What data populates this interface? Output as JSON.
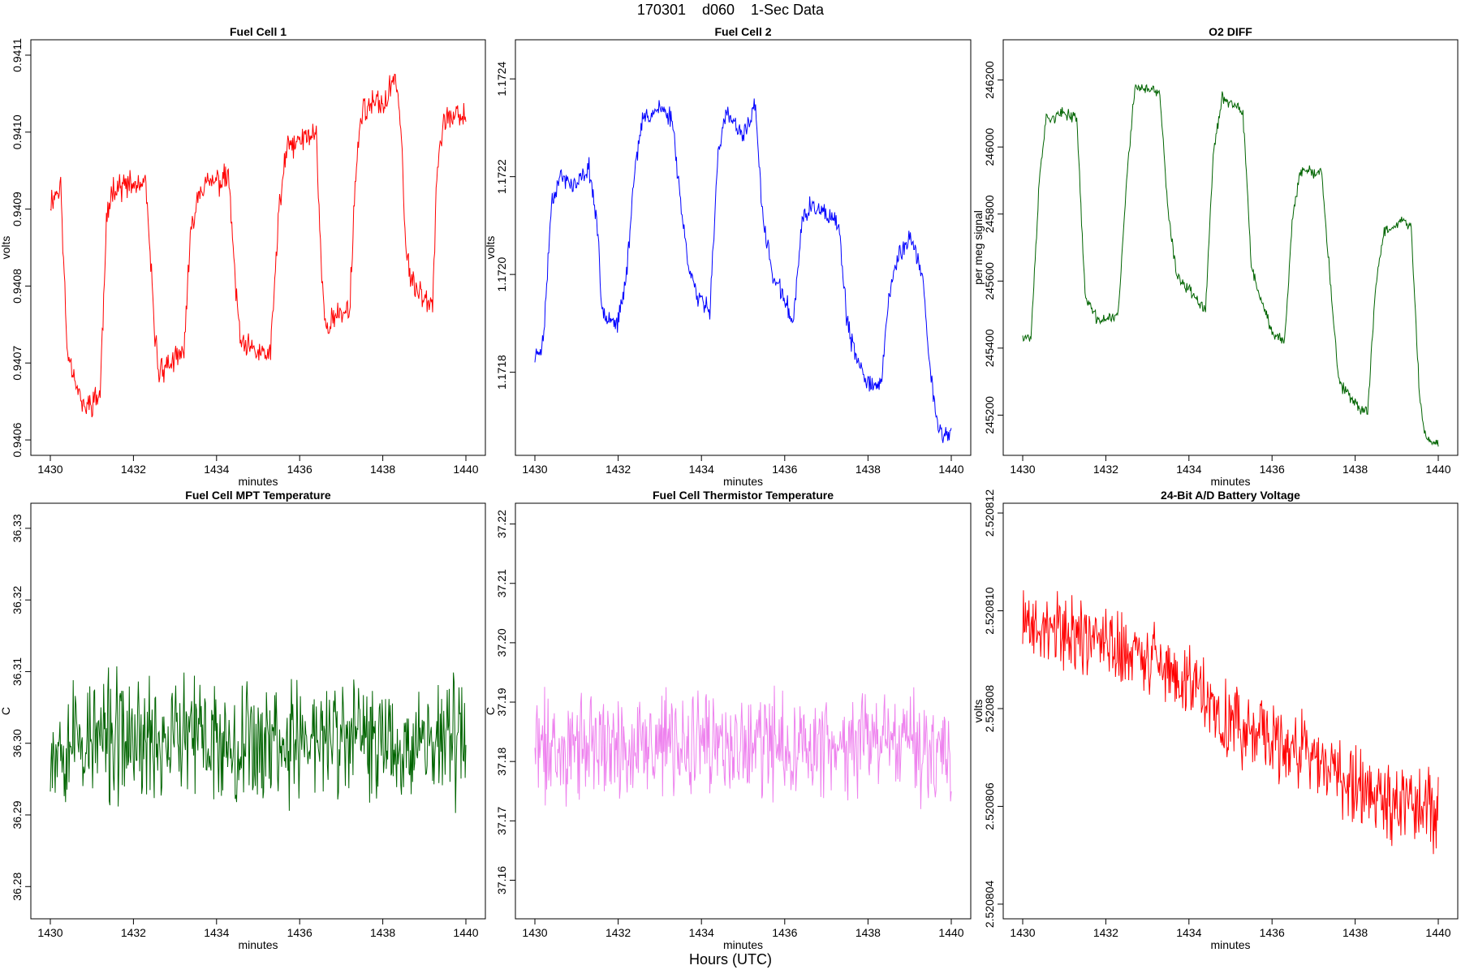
{
  "figure": {
    "title": "170301    d060    1-Sec Data",
    "footer": "Hours (UTC)"
  },
  "chart_data": [
    {
      "type": "line",
      "title": "Fuel Cell 1",
      "xlabel": "minutes",
      "ylabel": "volts",
      "color": "#ff0000",
      "xlim": [
        1430,
        1440
      ],
      "ylim": [
        0.94058,
        0.94112
      ],
      "x_ticks": [
        "1430",
        "1432",
        "1434",
        "1436",
        "1438",
        "1440"
      ],
      "y_ticks": [
        "0.9406",
        "0.9407",
        "0.9408",
        "0.9409",
        "0.9410",
        "0.9411"
      ],
      "y_tick_values": [
        0.9406,
        0.9407,
        0.9408,
        0.9409,
        0.941,
        0.9411
      ],
      "series": [
        {
          "name": "Fuel Cell 1",
          "noise": 2.2e-05,
          "seed": 11,
          "anchors": [
            [
              1430.0,
              0.94091
            ],
            [
              1430.25,
              0.94093
            ],
            [
              1430.4,
              0.94072
            ],
            [
              1430.8,
              0.94064
            ],
            [
              1431.2,
              0.94066
            ],
            [
              1431.35,
              0.94088
            ],
            [
              1431.5,
              0.94093
            ],
            [
              1432.3,
              0.94093
            ],
            [
              1432.5,
              0.94075
            ],
            [
              1432.6,
              0.94069
            ],
            [
              1433.2,
              0.94071
            ],
            [
              1433.4,
              0.94088
            ],
            [
              1433.6,
              0.94093
            ],
            [
              1434.3,
              0.94094
            ],
            [
              1434.45,
              0.9408
            ],
            [
              1434.6,
              0.94072
            ],
            [
              1435.3,
              0.94071
            ],
            [
              1435.5,
              0.9409
            ],
            [
              1435.7,
              0.94098
            ],
            [
              1436.4,
              0.941
            ],
            [
              1436.5,
              0.94085
            ],
            [
              1436.6,
              0.94075
            ],
            [
              1437.2,
              0.94077
            ],
            [
              1437.35,
              0.94095
            ],
            [
              1437.5,
              0.94103
            ],
            [
              1438.1,
              0.94104
            ],
            [
              1438.3,
              0.94108
            ],
            [
              1438.45,
              0.941
            ],
            [
              1438.55,
              0.94085
            ],
            [
              1438.7,
              0.9408
            ],
            [
              1439.2,
              0.94078
            ],
            [
              1439.3,
              0.94095
            ],
            [
              1439.5,
              0.94102
            ],
            [
              1439.9,
              0.94102
            ]
          ]
        }
      ]
    },
    {
      "type": "line",
      "title": "Fuel Cell 2",
      "xlabel": "minutes",
      "ylabel": "volts",
      "color": "#0000ff",
      "xlim": [
        1430,
        1440
      ],
      "ylim": [
        1.17163,
        1.17248
      ],
      "x_ticks": [
        "1430",
        "1432",
        "1434",
        "1436",
        "1438",
        "1440"
      ],
      "y_ticks": [
        "1.1718",
        "1.1720",
        "1.1722",
        "1.1724"
      ],
      "y_tick_values": [
        1.1718,
        1.172,
        1.1722,
        1.1724
      ],
      "series": [
        {
          "name": "Fuel Cell 2",
          "noise": 2.5e-05,
          "seed": 23,
          "anchors": [
            [
              1430.0,
              1.17183
            ],
            [
              1430.2,
              1.17186
            ],
            [
              1430.4,
              1.17215
            ],
            [
              1430.6,
              1.1722
            ],
            [
              1431.0,
              1.17218
            ],
            [
              1431.3,
              1.17222
            ],
            [
              1431.5,
              1.1721
            ],
            [
              1431.6,
              1.17193
            ],
            [
              1432.0,
              1.1719
            ],
            [
              1432.2,
              1.172
            ],
            [
              1432.4,
              1.17222
            ],
            [
              1432.6,
              1.17232
            ],
            [
              1433.0,
              1.17234
            ],
            [
              1433.3,
              1.17232
            ],
            [
              1433.5,
              1.17215
            ],
            [
              1433.65,
              1.17204
            ],
            [
              1433.9,
              1.17195
            ],
            [
              1434.2,
              1.17193
            ],
            [
              1434.4,
              1.17225
            ],
            [
              1434.6,
              1.17233
            ],
            [
              1435.0,
              1.17228
            ],
            [
              1435.3,
              1.17235
            ],
            [
              1435.45,
              1.17213
            ],
            [
              1435.7,
              1.172
            ],
            [
              1436.0,
              1.17195
            ],
            [
              1436.2,
              1.1719
            ],
            [
              1436.4,
              1.1721
            ],
            [
              1436.6,
              1.17214
            ],
            [
              1437.0,
              1.17212
            ],
            [
              1437.3,
              1.1721
            ],
            [
              1437.5,
              1.1719
            ],
            [
              1437.7,
              1.17183
            ],
            [
              1438.0,
              1.17178
            ],
            [
              1438.3,
              1.17177
            ],
            [
              1438.5,
              1.17195
            ],
            [
              1438.7,
              1.17203
            ],
            [
              1439.0,
              1.17208
            ],
            [
              1439.3,
              1.172
            ],
            [
              1439.5,
              1.1718
            ],
            [
              1439.7,
              1.17168
            ],
            [
              1439.9,
              1.17167
            ]
          ]
        }
      ]
    },
    {
      "type": "line",
      "title": "O2 DIFF",
      "xlabel": "minutes",
      "ylabel": "per meg signal",
      "color": "#006400",
      "xlim": [
        1430,
        1440
      ],
      "ylim": [
        245080,
        246320
      ],
      "x_ticks": [
        "1430",
        "1432",
        "1434",
        "1436",
        "1438",
        "1440"
      ],
      "y_ticks": [
        "245200",
        "245400",
        "245600",
        "245800",
        "246000",
        "246200"
      ],
      "y_tick_values": [
        245200,
        245400,
        245600,
        245800,
        246000,
        246200
      ],
      "series": [
        {
          "name": "O2 DIFF",
          "noise": 22,
          "seed": 37,
          "anchors": [
            [
              1430.0,
              245440
            ],
            [
              1430.2,
              245430
            ],
            [
              1430.4,
              245900
            ],
            [
              1430.55,
              246080
            ],
            [
              1431.0,
              246100
            ],
            [
              1431.3,
              246090
            ],
            [
              1431.5,
              245560
            ],
            [
              1431.8,
              245480
            ],
            [
              1432.3,
              245500
            ],
            [
              1432.5,
              245900
            ],
            [
              1432.7,
              246180
            ],
            [
              1433.3,
              246160
            ],
            [
              1433.5,
              245800
            ],
            [
              1433.7,
              245620
            ],
            [
              1434.1,
              245560
            ],
            [
              1434.4,
              245520
            ],
            [
              1434.6,
              246000
            ],
            [
              1434.8,
              246150
            ],
            [
              1435.3,
              246100
            ],
            [
              1435.5,
              245650
            ],
            [
              1435.7,
              245550
            ],
            [
              1436.0,
              245450
            ],
            [
              1436.3,
              245420
            ],
            [
              1436.5,
              245800
            ],
            [
              1436.7,
              245930
            ],
            [
              1437.2,
              245920
            ],
            [
              1437.4,
              245600
            ],
            [
              1437.6,
              245300
            ],
            [
              1438.0,
              245230
            ],
            [
              1438.3,
              245210
            ],
            [
              1438.5,
              245600
            ],
            [
              1438.7,
              245750
            ],
            [
              1439.1,
              245780
            ],
            [
              1439.35,
              245760
            ],
            [
              1439.55,
              245250
            ],
            [
              1439.7,
              245130
            ],
            [
              1439.95,
              245120
            ]
          ]
        }
      ]
    },
    {
      "type": "line",
      "title": "Fuel Cell MPT Temperature",
      "xlabel": "minutes",
      "ylabel": "C",
      "color": "#006400",
      "xlim": [
        1430,
        1440
      ],
      "ylim": [
        36.2755,
        36.3335
      ],
      "x_ticks": [
        "1430",
        "1432",
        "1434",
        "1436",
        "1438",
        "1440"
      ],
      "y_ticks": [
        "36.28",
        "36.29",
        "36.30",
        "36.31",
        "36.32",
        "36.33"
      ],
      "y_tick_values": [
        36.28,
        36.29,
        36.3,
        36.31,
        36.32,
        36.33
      ],
      "series": [
        {
          "name": "Fuel Cell MPT Temperature",
          "noise": 0.011,
          "seed": 53,
          "anchors": [
            [
              1430.0,
              36.3005
            ],
            [
              1440.0,
              36.3005
            ]
          ]
        }
      ]
    },
    {
      "type": "line",
      "title": "Fuel Cell Thermistor Temperature",
      "xlabel": "minutes",
      "ylabel": "C",
      "color": "#ee82ee",
      "xlim": [
        1430,
        1440
      ],
      "ylim": [
        37.1535,
        37.2235
      ],
      "x_ticks": [
        "1430",
        "1432",
        "1434",
        "1436",
        "1438",
        "1440"
      ],
      "y_ticks": [
        "37.16",
        "37.17",
        "37.18",
        "37.19",
        "37.20",
        "37.21",
        "37.22"
      ],
      "y_tick_values": [
        37.16,
        37.17,
        37.18,
        37.19,
        37.2,
        37.21,
        37.22
      ],
      "series": [
        {
          "name": "Fuel Cell Thermistor Temperature",
          "noise": 0.011,
          "seed": 71,
          "anchors": [
            [
              1430.0,
              37.1825
            ],
            [
              1440.0,
              37.1825
            ]
          ]
        }
      ]
    },
    {
      "type": "line",
      "title": "24-Bit A/D Battery Voltage",
      "xlabel": "minutes",
      "ylabel": "volts",
      "color": "#ff0000",
      "xlim": [
        1430,
        1440
      ],
      "ylim": [
        2.5208037,
        2.5208122
      ],
      "x_ticks": [
        "1430",
        "1432",
        "1434",
        "1436",
        "1438",
        "1440"
      ],
      "y_ticks": [
        "2.520804",
        "2.520806",
        "2.520808",
        "2.520810",
        "2.520812"
      ],
      "y_tick_values": [
        2.520804,
        2.520806,
        2.520808,
        2.52081,
        2.520812
      ],
      "series": [
        {
          "name": "24-Bit A/D Battery Voltage",
          "noise": 1e-06,
          "seed": 89,
          "anchors": [
            [
              1430.0,
              2.5208097
            ],
            [
              1431.0,
              2.5208096
            ],
            [
              1432.0,
              2.5208093
            ],
            [
              1433.0,
              2.5208091
            ],
            [
              1434.0,
              2.5208085
            ],
            [
              1435.0,
              2.5208077
            ],
            [
              1436.0,
              2.5208073
            ],
            [
              1437.0,
              2.520807
            ],
            [
              1438.0,
              2.5208065
            ],
            [
              1439.0,
              2.520806
            ],
            [
              1440.0,
              2.5208059
            ]
          ]
        }
      ]
    }
  ]
}
